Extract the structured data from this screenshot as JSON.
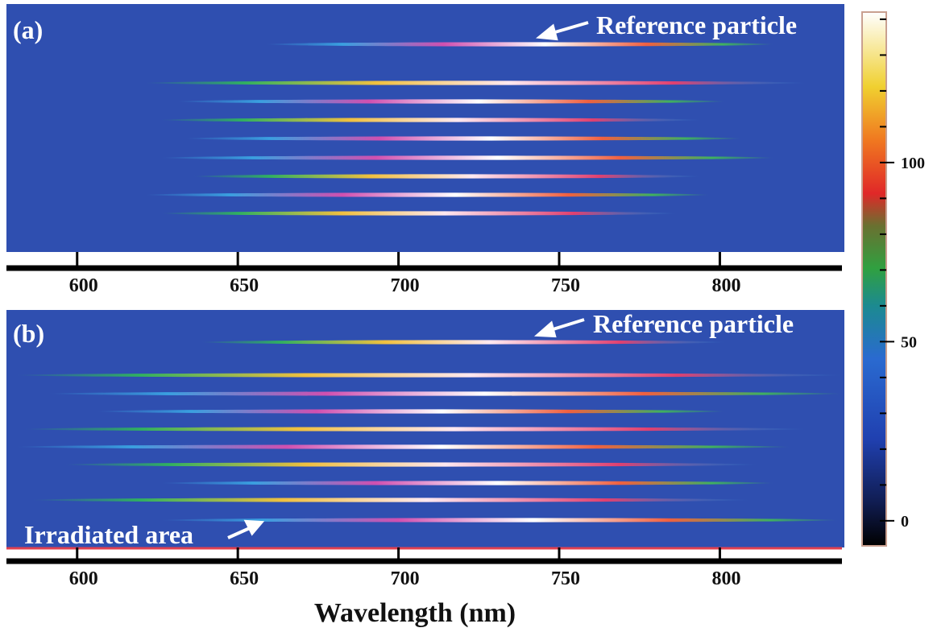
{
  "chart_data": [
    {
      "type": "spectral-image",
      "label": "(a)",
      "annotation": "Reference particle",
      "xlim": [
        578,
        838
      ],
      "xticks": [
        600,
        650,
        700,
        750,
        800
      ]
    },
    {
      "type": "spectral-image",
      "label": "(b)",
      "annotation": "Reference particle",
      "annotation_2": "Irradiated area",
      "xlabel": "Wavelength (nm)",
      "xlim": [
        578,
        838
      ],
      "xticks": [
        600,
        650,
        700,
        750,
        800
      ]
    },
    {
      "type": "colorbar",
      "ylim": [
        -7,
        142
      ],
      "yticks": [
        0,
        50,
        100
      ],
      "minor_yticks": [
        0,
        10,
        20,
        30,
        40,
        50,
        60,
        70,
        80,
        90,
        100,
        110,
        120,
        130,
        140
      ]
    }
  ]
}
